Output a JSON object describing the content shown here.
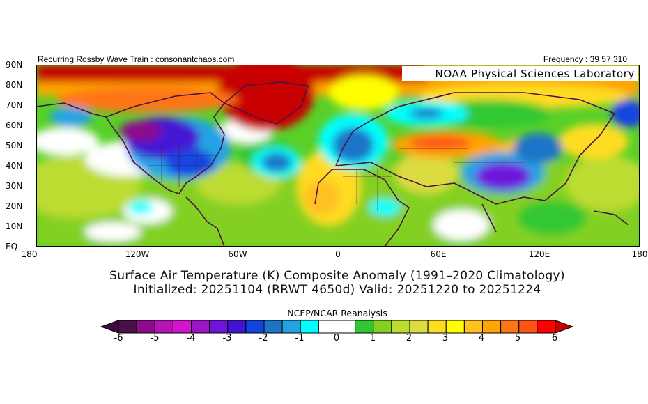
{
  "header": {
    "left_text": "Recurring Rossby Wave Train : consonantchaos.com",
    "right_text": "Frequency : 39 57 310",
    "map_label": "NOAA Physical Sciences Laboratory"
  },
  "axes": {
    "lat_labels": [
      "90N",
      "80N",
      "70N",
      "60N",
      "50N",
      "40N",
      "30N",
      "20N",
      "10N",
      "EQ"
    ],
    "lon_labels": [
      "180",
      "120W",
      "60W",
      "0",
      "60E",
      "120E",
      "180"
    ]
  },
  "titles": {
    "line1": "Surface Air Temperature (K) Composite Anomaly (1991–2020 Climatology)",
    "line2": "Initialized: 20251104 (RRWT 4650d) Valid: 20251220 to 20251224"
  },
  "colorbar": {
    "title": "NCEP/NCAR Reanalysis",
    "tick_labels": [
      "-6",
      "-5",
      "-4",
      "-3",
      "-2",
      "-1",
      "0",
      "1",
      "2",
      "3",
      "4",
      "5",
      "6"
    ],
    "colors": [
      "#4a1048",
      "#8c0c8c",
      "#b414b4",
      "#d014d0",
      "#9c14c8",
      "#7014dc",
      "#4414d4",
      "#1444e0",
      "#1c74c8",
      "#20a4e4",
      "#00ffff",
      "#ffffff",
      "#ffffff",
      "#30c830",
      "#84d020",
      "#bcdc30",
      "#dcdc40",
      "#ffdc20",
      "#ffff00",
      "#ffc020",
      "#ffa400",
      "#ff7414",
      "#ff5414",
      "#ff0000"
    ],
    "under_color": "#3c0c3c",
    "over_color": "#c80000"
  }
}
